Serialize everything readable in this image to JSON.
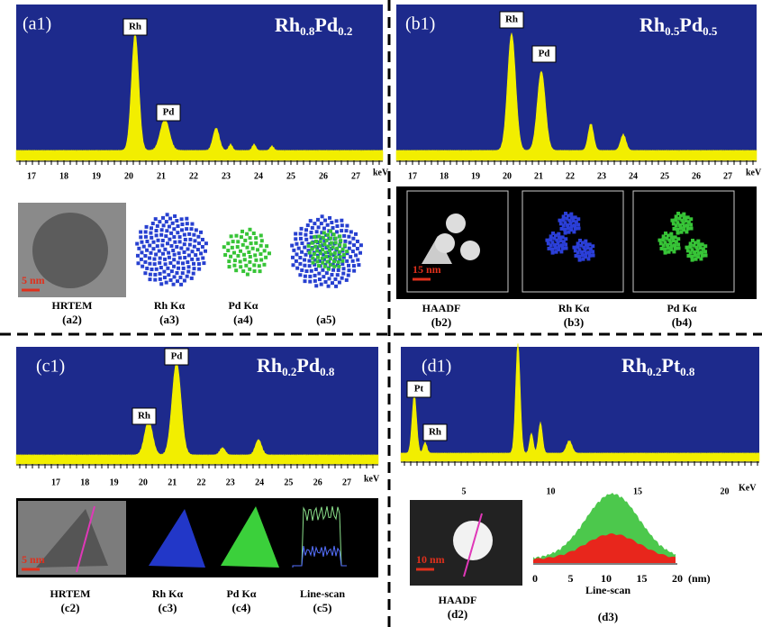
{
  "panels": [
    {
      "label": "(a1)",
      "composition": {
        "el1": "Rh",
        "sub1": "0.8",
        "el2": "Pd",
        "sub2": "0.2"
      },
      "peaks": [
        "Rh",
        "Pd"
      ],
      "xticks": [
        "17",
        "18",
        "19",
        "20",
        "21",
        "22",
        "23",
        "24",
        "25",
        "26",
        "27"
      ],
      "unit": "keV",
      "images": [
        {
          "caption": "HRTEM",
          "label": "(a2)",
          "scale": "5 nm"
        },
        {
          "caption": "Rh Kα",
          "label": "(a3)"
        },
        {
          "caption": "Pd Kα",
          "label": "(a4)"
        },
        {
          "label": "(a5)"
        }
      ]
    },
    {
      "label": "(b1)",
      "composition": {
        "el1": "Rh",
        "sub1": "0.5",
        "el2": "Pd",
        "sub2": "0.5"
      },
      "peaks": [
        "Rh",
        "Pd"
      ],
      "xticks": [
        "17",
        "18",
        "19",
        "20",
        "21",
        "22",
        "23",
        "24",
        "25",
        "26",
        "27"
      ],
      "unit": "keV",
      "images": [
        {
          "caption": "HAADF",
          "label": "(b2)",
          "scale": "15 nm"
        },
        {
          "caption": "Rh Kα",
          "label": "(b3)"
        },
        {
          "caption": "Pd Kα",
          "label": "(b4)"
        }
      ]
    },
    {
      "label": "(c1)",
      "composition": {
        "el1": "Rh",
        "sub1": "0.2",
        "el2": "Pd",
        "sub2": "0.8"
      },
      "peaks": [
        "Pd",
        "Rh"
      ],
      "xticks": [
        "17",
        "18",
        "19",
        "20",
        "21",
        "22",
        "23",
        "24",
        "25",
        "26",
        "27"
      ],
      "unit": "keV",
      "images": [
        {
          "caption": "HRTEM",
          "label": "(c2)",
          "scale": "5 nm"
        },
        {
          "caption": "Rh Kα",
          "label": "(c3)"
        },
        {
          "caption": "Pd Kα",
          "label": "(c4)"
        },
        {
          "caption": "Line-scan",
          "label": "(c5)"
        }
      ]
    },
    {
      "label": "(d1)",
      "composition": {
        "el1": "Rh",
        "sub1": "0.2",
        "el2": "Pt",
        "sub2": "0.8"
      },
      "peaks": [
        "Pt",
        "Rh"
      ],
      "xticks": [
        "5",
        "10",
        "15",
        "20"
      ],
      "unit": "KeV",
      "images": [
        {
          "caption": "HAADF",
          "label": "(d2)",
          "scale": "10 nm"
        },
        {
          "caption": "Line-scan",
          "label": "(d3)",
          "xticks": [
            "0",
            "5",
            "10",
            "15",
            "20"
          ],
          "unit": "(nm)"
        }
      ]
    }
  ]
}
